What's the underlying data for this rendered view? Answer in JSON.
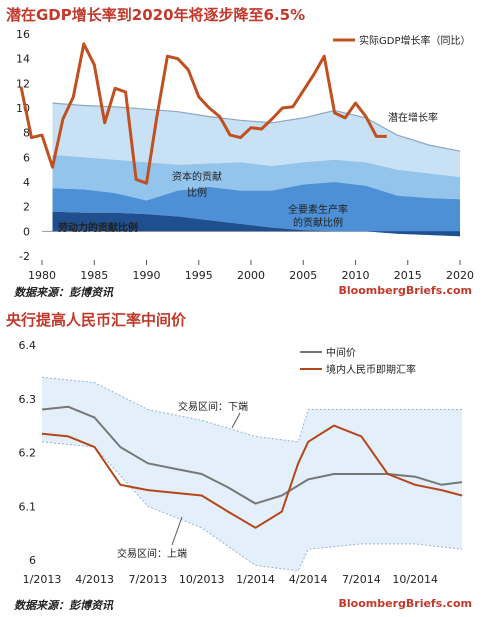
{
  "panel1": {
    "title": "潜在GDP增长率到2020年将逐步降至6.5%",
    "source": "数据来源：彭博资讯",
    "credit": "BloombergBriefs.com"
  },
  "panel2": {
    "title": "央行提高人民币汇率中间价",
    "source": "数据来源：彭博资讯",
    "credit": "BloombergBriefs.com"
  },
  "colors": {
    "title_red": "#c0392b",
    "gdp_line": "#c0501f",
    "band_outer": "#c9e1f5",
    "band_mid": "#93c4ec",
    "band_inner": "#4d90d6",
    "band_bottom": "#1f4f8f",
    "mid_rate": "#777777",
    "spot_rate": "#b5461a",
    "fx_band": "#e3f0fb"
  },
  "chart_data": [
    {
      "type": "area",
      "title": "潜在GDP增长率到2020年将逐步降至6.5%",
      "x_ticks": [
        1980,
        1985,
        1990,
        1995,
        2000,
        2005,
        2010,
        2015,
        2020
      ],
      "y_ticks": [
        -2,
        0,
        2,
        4,
        6,
        8,
        10,
        12,
        14,
        16
      ],
      "ylim": [
        -2,
        16
      ],
      "xlim": [
        1980,
        2020
      ],
      "legend": {
        "position": "top-right",
        "entries": [
          "实际GDP增长率（同比）"
        ]
      },
      "annotations": [
        "潜在增长率",
        "资本的贡献",
        "比例",
        "全要素生产率",
        "的贡献比例",
        "劳动力的贡献比例"
      ],
      "areas": {
        "x": [
          1981,
          1984,
          1987,
          1990,
          1993,
          1996,
          1999,
          2002,
          2005,
          2008,
          2011,
          2014,
          2017,
          2020
        ],
        "potential": [
          10.4,
          10.2,
          10.1,
          9.9,
          9.7,
          9.3,
          9.0,
          8.8,
          9.2,
          9.8,
          9.2,
          7.8,
          7.0,
          6.5
        ],
        "labor_plus_capital": [
          6.2,
          6.0,
          5.8,
          5.6,
          5.4,
          5.5,
          5.6,
          5.3,
          5.6,
          5.8,
          5.6,
          5.0,
          4.7,
          4.4
        ],
        "labor": [
          3.5,
          3.4,
          3.1,
          2.5,
          3.3,
          3.6,
          3.3,
          3.3,
          3.8,
          4.0,
          3.7,
          2.9,
          2.7,
          2.6
        ],
        "labor_base": [
          1.6,
          1.5,
          1.5,
          1.4,
          1.2,
          0.9,
          0.6,
          0.3,
          0.1,
          0.0,
          0.0,
          -0.2,
          -0.3,
          -0.4
        ]
      },
      "series": [
        {
          "name": "实际GDP增长率（同比）",
          "x": [
            1978,
            1979,
            1980,
            1981,
            1982,
            1983,
            1984,
            1985,
            1986,
            1987,
            1988,
            1989,
            1990,
            1991,
            1992,
            1993,
            1994,
            1995,
            1996,
            1997,
            1998,
            1999,
            2000,
            2001,
            2002,
            2003,
            2004,
            2005,
            2006,
            2007,
            2008,
            2009,
            2010,
            2011,
            2012,
            2013
          ],
          "values": [
            11.7,
            7.6,
            7.8,
            5.2,
            9.1,
            10.9,
            15.2,
            13.5,
            8.8,
            11.6,
            11.3,
            4.2,
            3.9,
            9.3,
            14.2,
            14.0,
            13.1,
            10.9,
            10.0,
            9.3,
            7.8,
            7.6,
            8.4,
            8.3,
            9.1,
            10.0,
            10.1,
            11.4,
            12.7,
            14.2,
            9.6,
            9.2,
            10.4,
            9.3,
            7.7,
            7.7
          ]
        }
      ]
    },
    {
      "type": "line",
      "title": "央行提高人民币汇率中间价",
      "x_ticks": [
        "1/2013",
        "4/2013",
        "7/2013",
        "10/2013",
        "1/2014",
        "4/2014",
        "7/2014",
        "10/2014"
      ],
      "y_ticks": [
        6,
        6.1,
        6.2,
        6.3,
        6.4
      ],
      "ylim": [
        6.0,
        6.4
      ],
      "xlim": [
        "2013-01-01",
        "2014-12-20"
      ],
      "legend": {
        "position": "top-right",
        "entries": [
          "中间价",
          "境内人民币即期汇率"
        ]
      },
      "annotations": [
        "交易区间：下端",
        "交易区间：上端"
      ],
      "series": [
        {
          "name": "中间价",
          "x": [
            "2013-01-01",
            "2013-02-15",
            "2013-04-01",
            "2013-05-15",
            "2013-07-01",
            "2013-08-15",
            "2013-10-01",
            "2013-11-15",
            "2014-01-01",
            "2014-02-15",
            "2014-04-01",
            "2014-05-15",
            "2014-07-01",
            "2014-08-15",
            "2014-10-01",
            "2014-11-15",
            "2014-12-20"
          ],
          "values": [
            6.28,
            6.285,
            6.265,
            6.21,
            6.18,
            6.17,
            6.16,
            6.135,
            6.105,
            6.12,
            6.15,
            6.16,
            6.16,
            6.16,
            6.155,
            6.14,
            6.145
          ]
        },
        {
          "name": "境内人民币即期汇率",
          "x": [
            "2013-01-01",
            "2013-02-15",
            "2013-04-01",
            "2013-05-15",
            "2013-07-01",
            "2013-08-15",
            "2013-10-01",
            "2013-11-15",
            "2014-01-01",
            "2014-02-15",
            "2014-03-15",
            "2014-04-01",
            "2014-05-15",
            "2014-07-01",
            "2014-08-15",
            "2014-10-01",
            "2014-11-15",
            "2014-12-20"
          ],
          "values": [
            6.235,
            6.23,
            6.21,
            6.14,
            6.13,
            6.125,
            6.12,
            6.09,
            6.06,
            6.09,
            6.18,
            6.22,
            6.25,
            6.23,
            6.16,
            6.14,
            6.13,
            6.12
          ]
        },
        {
          "name": "交易区间：下端",
          "x": [
            "2013-01-01",
            "2013-04-01",
            "2013-07-01",
            "2013-10-01",
            "2014-01-01",
            "2014-03-15",
            "2014-04-01",
            "2014-07-01",
            "2014-10-01",
            "2014-12-20"
          ],
          "values": [
            6.34,
            6.33,
            6.28,
            6.26,
            6.23,
            6.22,
            6.28,
            6.28,
            6.28,
            6.28
          ]
        },
        {
          "name": "交易区间：上端",
          "x": [
            "2013-01-01",
            "2013-04-01",
            "2013-07-01",
            "2013-10-01",
            "2014-01-01",
            "2014-03-15",
            "2014-04-01",
            "2014-07-01",
            "2014-10-01",
            "2014-12-20"
          ],
          "values": [
            6.22,
            6.21,
            6.1,
            6.06,
            5.99,
            5.98,
            6.02,
            6.03,
            6.03,
            6.02
          ]
        }
      ]
    }
  ]
}
